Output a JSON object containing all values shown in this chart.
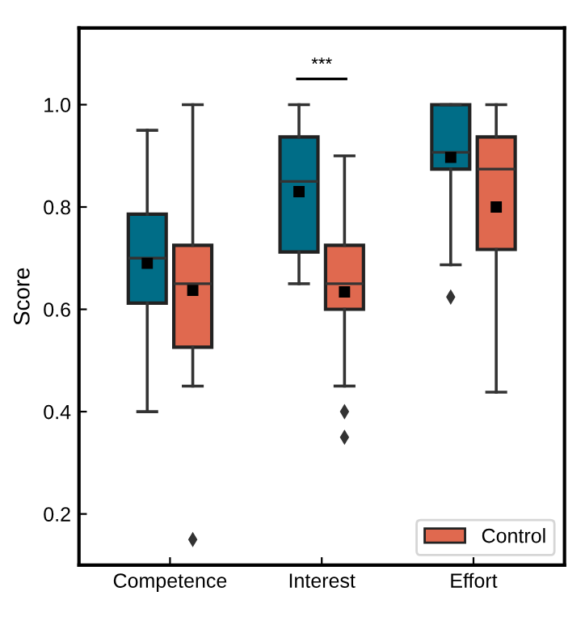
{
  "chart_data": {
    "type": "box",
    "ylabel": "Score",
    "categories": [
      "Competence",
      "Interest",
      "Effort"
    ],
    "ylim": [
      0.1,
      1.15
    ],
    "yticks": [
      0.2,
      0.4,
      0.6,
      0.8,
      {
        "value": 1,
        "label": "1.0"
      }
    ],
    "legend": "bottom right",
    "grid": false,
    "annotations": [
      "***"
    ],
    "series": [
      {
        "color": "#006d87",
        "boxes": [
          {
            "low": 0.4,
            "q1": 0.612,
            "median": 0.7,
            "q3": 0.786,
            "high": 0.95,
            "mean": 0.69
          },
          {
            "low": 0.65,
            "q1": 0.712,
            "median": 0.85,
            "q3": 0.937,
            "high": 1.0,
            "mean": 0.83
          },
          {
            "low": 0.687,
            "q1": 0.874,
            "median": 0.907,
            "q3": 1.0,
            "high": 1.0,
            "mean": 0.897,
            "outliers": [
              0.624
            ]
          }
        ]
      },
      {
        "name": "Control",
        "color": "#e0694f",
        "boxes": [
          {
            "low": 0.45,
            "q1": 0.526,
            "median": 0.65,
            "q3": 0.725,
            "high": 1.0,
            "mean": 0.637,
            "outliers": [
              0.15
            ]
          },
          {
            "low": 0.45,
            "q1": 0.6,
            "median": 0.65,
            "q3": 0.725,
            "high": 0.9,
            "mean": 0.634,
            "outliers": [
              0.4,
              0.35
            ]
          },
          {
            "low": 0.438,
            "q1": 0.717,
            "median": 0.874,
            "q3": 0.937,
            "high": 1.0,
            "mean": 0.8
          }
        ]
      }
    ]
  }
}
